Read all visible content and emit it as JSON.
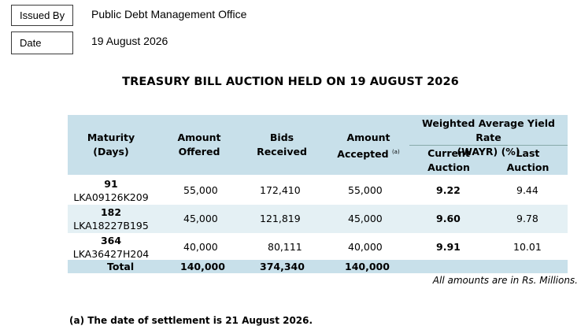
{
  "meta": {
    "issued_by_label": "Issued By",
    "issued_by_value": "Public Debt Management Office",
    "date_label": "Date",
    "date_value": "19 August 2026"
  },
  "title": "TREASURY BILL AUCTION HELD ON 19 AUGUST 2026",
  "table": {
    "headers": {
      "maturity": "Maturity",
      "maturity_unit": "(Days)",
      "offered_1": "Amount",
      "offered_2": "Offered",
      "bids_1": "Bids",
      "bids_2": "Received",
      "accepted_1": "Amount",
      "accepted_2": "Accepted",
      "accepted_note": "(a)",
      "wayr_1": "Weighted Average Yield Rate",
      "wayr_2": "(WAYR) (%)",
      "current_1": "Current",
      "current_2": "Auction",
      "last_1": "Last",
      "last_2": "Auction"
    },
    "rows": [
      {
        "days": "91",
        "code": "LKA09126K209",
        "offered": "55,000",
        "bids": "172,410",
        "accepted": "55,000",
        "current": "9.22",
        "last": "9.44"
      },
      {
        "days": "182",
        "code": "LKA18227B195",
        "offered": "45,000",
        "bids": "121,819",
        "accepted": "45,000",
        "current": "9.60",
        "last": "9.78"
      },
      {
        "days": "364",
        "code": "LKA36427H204",
        "offered": "40,000",
        "bids": "80,111",
        "accepted": "40,000",
        "current": "9.91",
        "last": "10.01"
      }
    ],
    "total": {
      "label": "Total",
      "offered": "140,000",
      "bids": "374,340",
      "accepted": "140,000"
    }
  },
  "amounts_note": "All amounts are in Rs. Millions.",
  "footnote": "(a) The date of settlement is 21 August 2026."
}
